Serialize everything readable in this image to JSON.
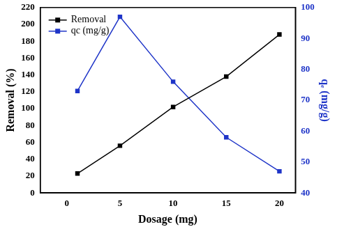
{
  "chart_data": {
    "type": "line",
    "x_label": "Dosage (mg)",
    "y_label": "Removal (%)",
    "y2_label": "qₑ (mg/g)",
    "x": [
      1,
      5,
      10,
      15,
      20
    ],
    "series": [
      {
        "name": "Removal",
        "color": "#000000",
        "values": [
          23,
          56,
          102,
          138,
          188
        ],
        "marker": "square",
        "line_style": "solid"
      },
      {
        "name": "qc (mg/g)",
        "color": "#1f35c8",
        "values": [
          73,
          97,
          76,
          58,
          47
        ],
        "axis": "y2",
        "marker": "square",
        "line_style": "solid"
      }
    ],
    "xlim": [
      -2.5,
      21.5
    ],
    "xticks": [
      0,
      5,
      10,
      15,
      20
    ],
    "ylim": [
      0,
      220
    ],
    "yticks": [
      0,
      20,
      40,
      60,
      80,
      100,
      120,
      140,
      160,
      180,
      200,
      220
    ],
    "y2lim": [
      40,
      100
    ],
    "y2ticks": [
      40,
      50,
      60,
      70,
      80,
      90,
      100
    ],
    "grid": false,
    "legend": "upper left"
  }
}
